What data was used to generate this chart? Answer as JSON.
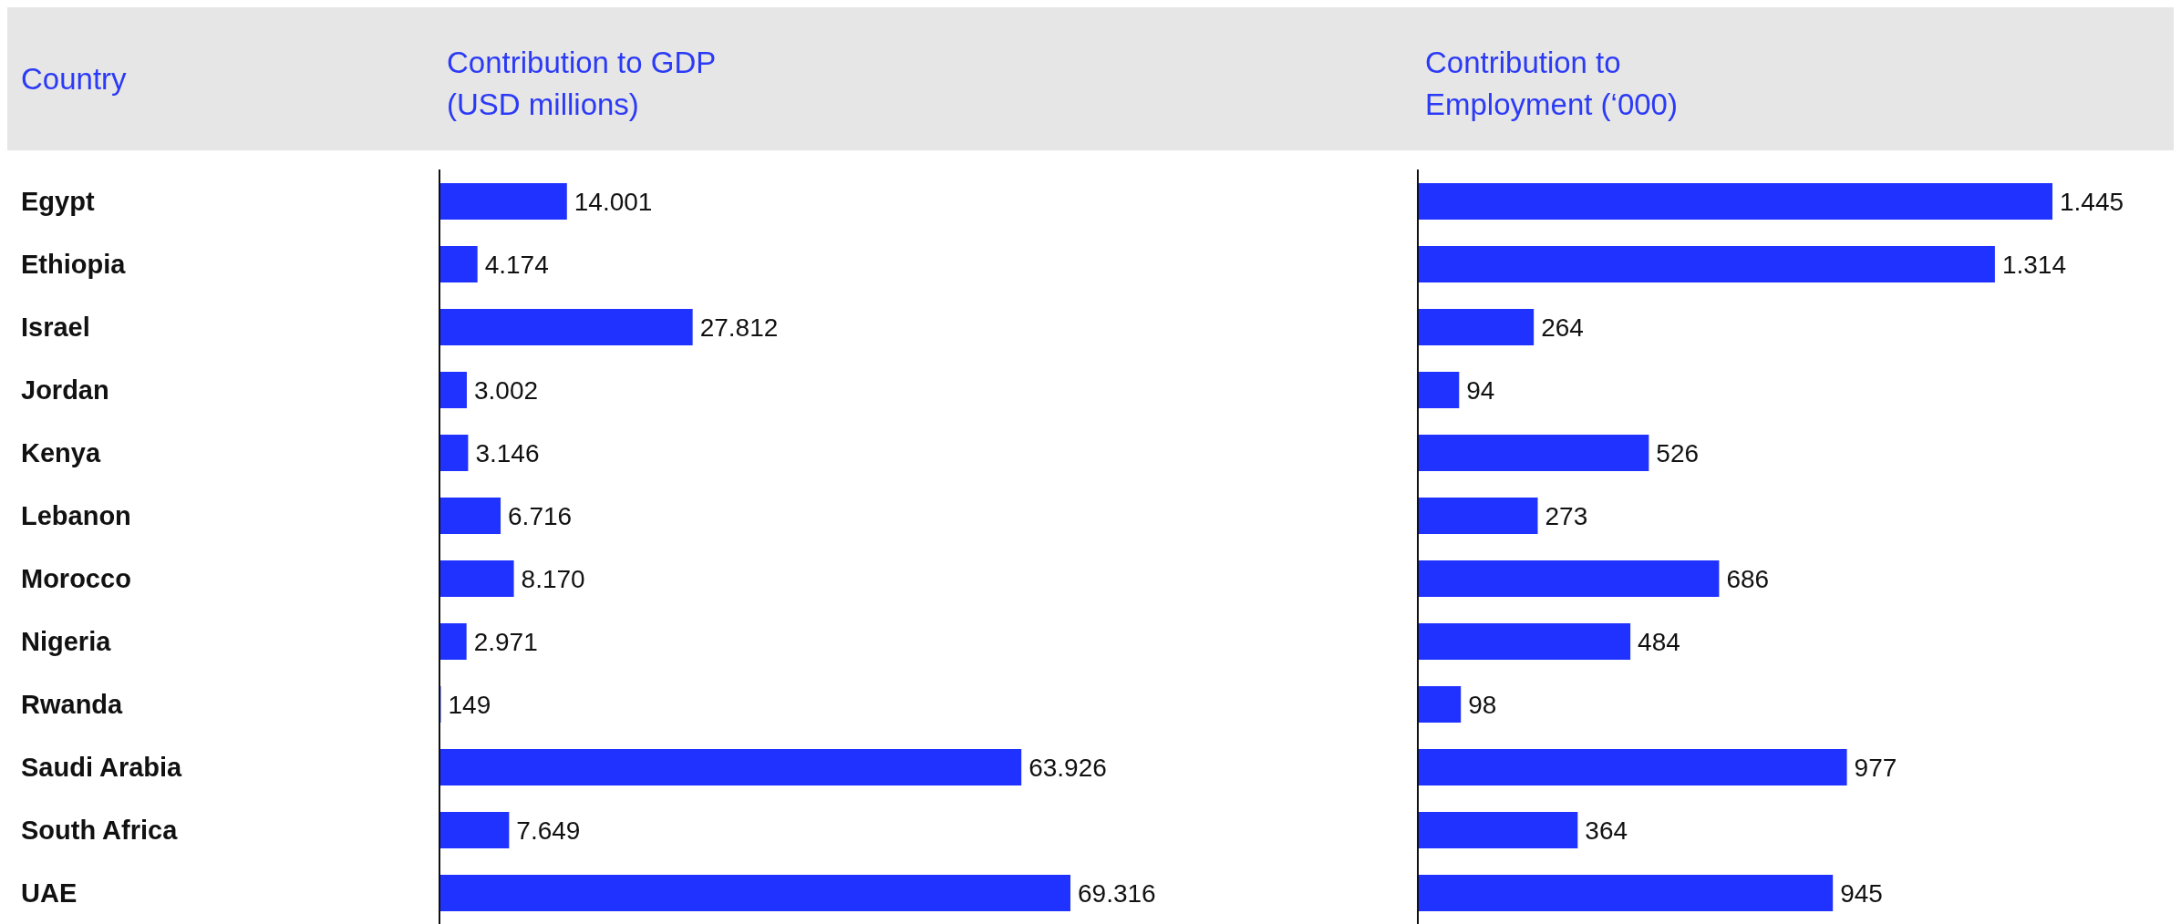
{
  "chart_data": [
    {
      "type": "bar",
      "orientation": "horizontal",
      "ylabel": "Country",
      "xlabel": "Contribution to GDP (USD millions)",
      "tick_labels": "y",
      "color": "#1f32ff",
      "categories": [
        "Egypt",
        "Ethiopia",
        "Israel",
        "Jordan",
        "Kenya",
        "Lebanon",
        "Morocco",
        "Nigeria",
        "Rwanda",
        "Saudi Arabia",
        "South Africa",
        "UAE"
      ],
      "values": [
        14001,
        4174,
        27812,
        3002,
        3146,
        6716,
        8170,
        2971,
        149,
        63926,
        7649,
        69316
      ],
      "value_labels": [
        "14.001",
        "4.174",
        "27.812",
        "3.002",
        "3.146",
        "6.716",
        "8.170",
        "2.971",
        "149",
        "63.926",
        "7.649",
        "69.316"
      ]
    },
    {
      "type": "bar",
      "orientation": "horizontal",
      "xlabel": "Contribution to Employment (‘000)",
      "tick_labels": false,
      "color": "#1f32ff",
      "categories": [
        null,
        null,
        null,
        null,
        null,
        null,
        null,
        null,
        null,
        null,
        null,
        null
      ],
      "values": [
        1445,
        1314,
        264,
        94,
        526,
        273,
        686,
        484,
        98,
        977,
        364,
        945
      ],
      "value_labels": [
        "1.445",
        "1.314",
        "264",
        "94",
        "526",
        "273",
        "686",
        "484",
        "98",
        "977",
        "364",
        "945"
      ]
    }
  ]
}
